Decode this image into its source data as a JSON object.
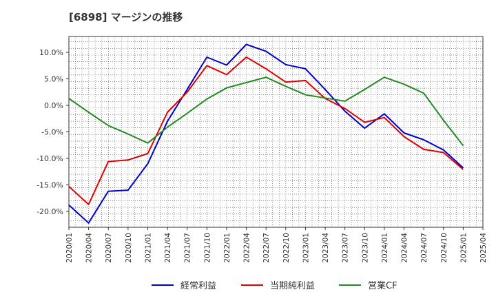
{
  "chart_data": {
    "type": "line",
    "title": "[6898]  マージンの推移",
    "xlabel": "",
    "ylabel": "",
    "ylim": [
      -23,
      13
    ],
    "yticks": [
      "10.0%",
      "5.0%",
      "0.0%",
      "-5.0%",
      "-10.0%",
      "-15.0%",
      "-20.0%"
    ],
    "ytick_values": [
      10,
      5,
      0,
      -5,
      -10,
      -15,
      -20
    ],
    "categories": [
      "2020/01",
      "2020/04",
      "2020/07",
      "2020/10",
      "2021/01",
      "2021/04",
      "2021/07",
      "2021/10",
      "2022/01",
      "2022/04",
      "2022/07",
      "2022/10",
      "2023/01",
      "2023/04",
      "2023/07",
      "2023/10",
      "2024/01",
      "2024/04",
      "2024/07",
      "2024/10",
      "2025/01",
      "2025/04"
    ],
    "grid": true,
    "legend_position": "bottom",
    "series": [
      {
        "name": "経常利益",
        "color": "#0000cc",
        "values": [
          -18.8,
          -22.2,
          -16.2,
          -16.0,
          -11.0,
          -3.0,
          3.0,
          9.1,
          7.6,
          11.5,
          10.2,
          7.7,
          6.9,
          3.0,
          -1.1,
          -4.3,
          -1.6,
          -5.2,
          -6.5,
          -8.4,
          -11.8,
          null
        ]
      },
      {
        "name": "当期純利益",
        "color": "#e00000",
        "values": [
          -15.3,
          -18.7,
          -10.6,
          -10.3,
          -9.1,
          -1.3,
          2.5,
          7.5,
          5.8,
          9.1,
          6.9,
          4.4,
          4.7,
          1.3,
          -0.6,
          -3.2,
          -2.3,
          -5.9,
          -8.3,
          -8.9,
          -12.1,
          null
        ]
      },
      {
        "name": "営業CF",
        "color": "#228b22",
        "values": [
          1.3,
          -1.3,
          -3.8,
          -5.4,
          -7.1,
          -4.1,
          -1.5,
          1.2,
          3.3,
          4.3,
          5.3,
          3.6,
          2.0,
          1.4,
          0.8,
          3.0,
          5.3,
          4.0,
          2.3,
          -2.8,
          -7.6,
          null
        ]
      }
    ]
  }
}
